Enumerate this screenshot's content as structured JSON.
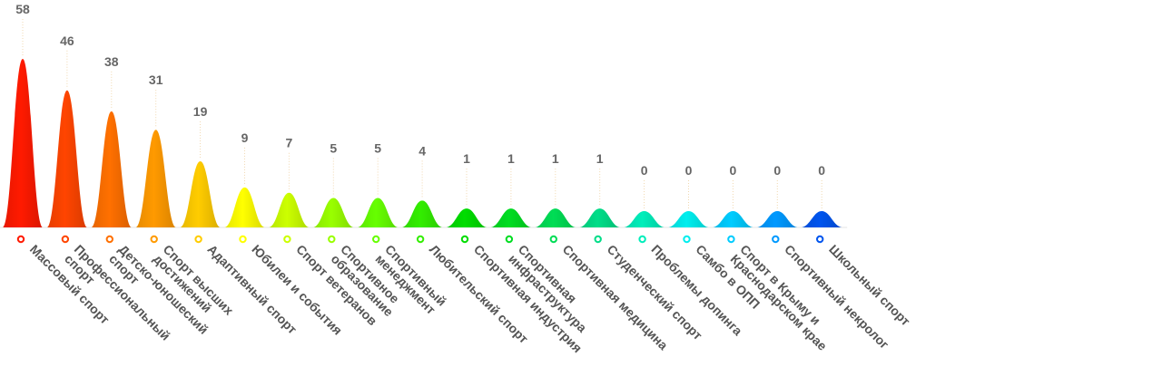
{
  "chart_data": {
    "type": "bar",
    "title": "",
    "xlabel": "",
    "ylabel": "",
    "ylim": [
      0,
      58
    ],
    "grid": false,
    "legend": "none",
    "categories": [
      [
        "Массовый спорт"
      ],
      [
        "Профессиональный",
        "спорт"
      ],
      [
        "Детско-юношеский",
        "спорт"
      ],
      [
        "Спорт высших",
        "достижений"
      ],
      [
        "Адаптивный спорт"
      ],
      [
        "Юбилеи и события"
      ],
      [
        "Спорт ветеранов"
      ],
      [
        "Спортивное",
        "образование"
      ],
      [
        "Спортивный",
        "менеджмент"
      ],
      [
        "Любительский спорт"
      ],
      [
        "Спортивная индустрия"
      ],
      [
        "Спортивная",
        "инфраструктура"
      ],
      [
        "Спортивная медицина"
      ],
      [
        "Студенческий спорт"
      ],
      [
        "Проблемы допинга"
      ],
      [
        "Самбо в ОПП"
      ],
      [
        "Спорт в Крыму и",
        "Краснодарском крае"
      ],
      [
        "Спортивный некролог"
      ],
      [
        "Школьный спорт"
      ]
    ],
    "values": [
      58,
      46,
      38,
      31,
      19,
      9,
      7,
      5,
      5,
      4,
      1,
      1,
      1,
      1,
      0,
      0,
      0,
      0,
      0
    ],
    "colors": [
      "#ff1a00",
      "#ff4500",
      "#ff7000",
      "#ff9a00",
      "#ffcc00",
      "#ffff00",
      "#ccff00",
      "#99ff00",
      "#66ff00",
      "#33ee00",
      "#00dd00",
      "#00dd22",
      "#00dd55",
      "#00dd88",
      "#00eebb",
      "#00eeee",
      "#00ccff",
      "#0099ff",
      "#0055ee"
    ]
  }
}
